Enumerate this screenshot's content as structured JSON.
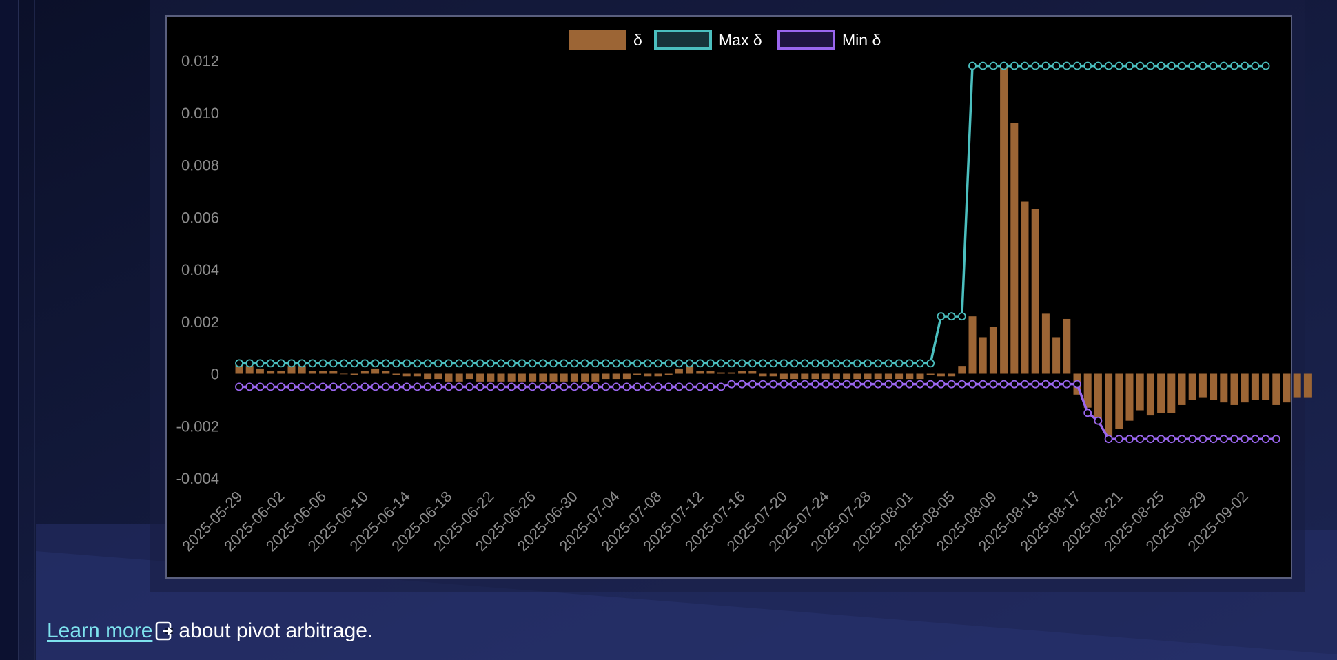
{
  "footer": {
    "link_text": "Learn more",
    "link_icon": "external-link-icon",
    "suffix_text": " about pivot arbitrage."
  },
  "colors": {
    "delta": "#9c6535",
    "max_delta": "#4bbfbf",
    "min_delta": "#9a66ee",
    "tick_text": "#8c8c8c"
  },
  "chart_data": {
    "type": "bar",
    "title": "",
    "xlabel": "",
    "ylabel": "",
    "ylim": [
      -0.004,
      0.012
    ],
    "yticks": [
      "0.012",
      "0.010",
      "0.008",
      "0.006",
      "0.004",
      "0.002",
      "0",
      "-0.002",
      "-0.004"
    ],
    "x_tick_labels": [
      "2025-05-29",
      "2025-06-02",
      "2025-06-06",
      "2025-06-10",
      "2025-06-14",
      "2025-06-18",
      "2025-06-22",
      "2025-06-26",
      "2025-06-30",
      "2025-07-04",
      "2025-07-08",
      "2025-07-12",
      "2025-07-16",
      "2025-07-20",
      "2025-07-24",
      "2025-07-28",
      "2025-08-01",
      "2025-08-05",
      "2025-08-09",
      "2025-08-13",
      "2025-08-17",
      "2025-08-21",
      "2025-08-25",
      "2025-08-29",
      "2025-09-02"
    ],
    "legend_position": "top",
    "grid": false,
    "start_date": "2025-05-29",
    "series": [
      {
        "name": "δ",
        "kind": "bar",
        "values": [
          0.0004,
          0.0003,
          0.0002,
          0.0001,
          0.0001,
          0.0003,
          0.0003,
          0.0001,
          0.0001,
          0.0001,
          0.0,
          -5e-05,
          0.0001,
          0.0002,
          0.0001,
          -5e-05,
          -0.0001,
          -0.0001,
          -0.0002,
          -0.0002,
          -0.0003,
          -0.0003,
          -0.0002,
          -0.0003,
          -0.0003,
          -0.0003,
          -0.0003,
          -0.0003,
          -0.0003,
          -0.0003,
          -0.0003,
          -0.0003,
          -0.0003,
          -0.0003,
          -0.0003,
          -0.0002,
          -0.0002,
          -0.0002,
          -5e-05,
          -0.0001,
          -0.0001,
          -5e-05,
          0.0002,
          0.0003,
          0.0001,
          0.0001,
          5e-05,
          5e-05,
          0.0001,
          0.0001,
          -0.0001,
          -0.0001,
          -0.0002,
          -0.0002,
          -0.0002,
          -0.0002,
          -0.0002,
          -0.0002,
          -0.0002,
          -0.0002,
          -0.0002,
          -0.0002,
          -0.0002,
          -0.0002,
          -0.0002,
          -0.0002,
          -5e-05,
          -0.0001,
          -0.0001,
          0.0003,
          0.0022,
          0.0014,
          0.0018,
          0.0118,
          0.0096,
          0.0066,
          0.0063,
          0.0023,
          0.0014,
          0.0021,
          -0.0008,
          -0.0013,
          -0.0019,
          -0.0024,
          -0.0021,
          -0.0018,
          -0.0014,
          -0.0016,
          -0.0015,
          -0.0015,
          -0.0012,
          -0.001,
          -0.0009,
          -0.001,
          -0.0011,
          -0.0012,
          -0.0011,
          -0.001,
          -0.001,
          -0.0012,
          -0.0011,
          -0.0009,
          -0.0009
        ]
      },
      {
        "name": "Max δ",
        "kind": "line",
        "values": [
          0.0004,
          0.0004,
          0.0004,
          0.0004,
          0.0004,
          0.0004,
          0.0004,
          0.0004,
          0.0004,
          0.0004,
          0.0004,
          0.0004,
          0.0004,
          0.0004,
          0.0004,
          0.0004,
          0.0004,
          0.0004,
          0.0004,
          0.0004,
          0.0004,
          0.0004,
          0.0004,
          0.0004,
          0.0004,
          0.0004,
          0.0004,
          0.0004,
          0.0004,
          0.0004,
          0.0004,
          0.0004,
          0.0004,
          0.0004,
          0.0004,
          0.0004,
          0.0004,
          0.0004,
          0.0004,
          0.0004,
          0.0004,
          0.0004,
          0.0004,
          0.0004,
          0.0004,
          0.0004,
          0.0004,
          0.0004,
          0.0004,
          0.0004,
          0.0004,
          0.0004,
          0.0004,
          0.0004,
          0.0004,
          0.0004,
          0.0004,
          0.0004,
          0.0004,
          0.0004,
          0.0004,
          0.0004,
          0.0004,
          0.0004,
          0.0004,
          0.0004,
          0.0004,
          0.0022,
          0.0022,
          0.0022,
          0.0118,
          0.0118,
          0.0118,
          0.0118,
          0.0118,
          0.0118,
          0.0118,
          0.0118,
          0.0118,
          0.0118,
          0.0118,
          0.0118,
          0.0118,
          0.0118,
          0.0118,
          0.0118,
          0.0118,
          0.0118,
          0.0118,
          0.0118,
          0.0118,
          0.0118,
          0.0118,
          0.0118,
          0.0118,
          0.0118,
          0.0118,
          0.0118,
          0.0118
        ]
      },
      {
        "name": "Min δ",
        "kind": "line",
        "values": [
          -0.0005,
          -0.0005,
          -0.0005,
          -0.0005,
          -0.0005,
          -0.0005,
          -0.0005,
          -0.0005,
          -0.0005,
          -0.0005,
          -0.0005,
          -0.0005,
          -0.0005,
          -0.0005,
          -0.0005,
          -0.0005,
          -0.0005,
          -0.0005,
          -0.0005,
          -0.0005,
          -0.0005,
          -0.0005,
          -0.0005,
          -0.0005,
          -0.0005,
          -0.0005,
          -0.0005,
          -0.0005,
          -0.0005,
          -0.0005,
          -0.0005,
          -0.0005,
          -0.0005,
          -0.0005,
          -0.0005,
          -0.0005,
          -0.0005,
          -0.0005,
          -0.0005,
          -0.0005,
          -0.0005,
          -0.0005,
          -0.0005,
          -0.0005,
          -0.0005,
          -0.0005,
          -0.0005,
          -0.0004,
          -0.0004,
          -0.0004,
          -0.0004,
          -0.0004,
          -0.0004,
          -0.0004,
          -0.0004,
          -0.0004,
          -0.0004,
          -0.0004,
          -0.0004,
          -0.0004,
          -0.0004,
          -0.0004,
          -0.0004,
          -0.0004,
          -0.0004,
          -0.0004,
          -0.0004,
          -0.0004,
          -0.0004,
          -0.0004,
          -0.0004,
          -0.0004,
          -0.0004,
          -0.0004,
          -0.0004,
          -0.0004,
          -0.0004,
          -0.0004,
          -0.0004,
          -0.0004,
          -0.0004,
          -0.0015,
          -0.0018,
          -0.0025,
          -0.0025,
          -0.0025,
          -0.0025,
          -0.0025,
          -0.0025,
          -0.0025,
          -0.0025,
          -0.0025,
          -0.0025,
          -0.0025,
          -0.0025,
          -0.0025,
          -0.0025,
          -0.0025,
          -0.0025,
          -0.0025
        ]
      }
    ]
  }
}
